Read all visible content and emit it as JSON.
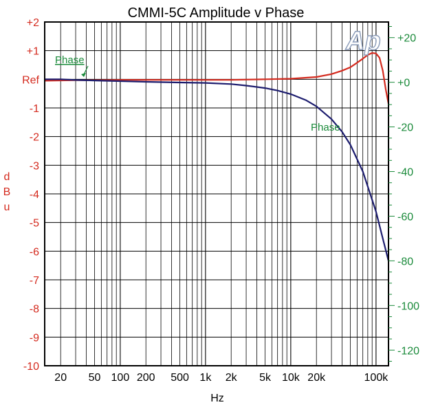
{
  "chart_data": {
    "type": "line",
    "title": "CMMI-5C  Amplitude v Phase",
    "xlabel": "Hz",
    "ylabel_left": "dBu",
    "x_scale": "log",
    "xlim": [
      13,
      140000
    ],
    "ylim_left": [
      -10,
      2
    ],
    "ylim_right": [
      -127,
      27
    ],
    "grid": true,
    "x_ticks": [
      {
        "value": 20,
        "label": "20"
      },
      {
        "value": 50,
        "label": "50"
      },
      {
        "value": 100,
        "label": "100"
      },
      {
        "value": 200,
        "label": "200"
      },
      {
        "value": 500,
        "label": "500"
      },
      {
        "value": 1000,
        "label": "1k"
      },
      {
        "value": 2000,
        "label": "2k"
      },
      {
        "value": 5000,
        "label": "5k"
      },
      {
        "value": 10000,
        "label": "10k"
      },
      {
        "value": 20000,
        "label": "20k"
      },
      {
        "value": 100000,
        "label": "100k"
      }
    ],
    "y_left_ticks": [
      {
        "value": 2,
        "label": "+2"
      },
      {
        "value": 1,
        "label": "+1"
      },
      {
        "value": 0,
        "label": "Ref"
      },
      {
        "value": -1,
        "label": "-1"
      },
      {
        "value": -2,
        "label": "-2"
      },
      {
        "value": -3,
        "label": "-3"
      },
      {
        "value": -4,
        "label": "-4"
      },
      {
        "value": -5,
        "label": "-5"
      },
      {
        "value": -6,
        "label": "-6"
      },
      {
        "value": -7,
        "label": "-7"
      },
      {
        "value": -8,
        "label": "-8"
      },
      {
        "value": -9,
        "label": "-9"
      },
      {
        "value": -10,
        "label": "-10"
      }
    ],
    "y_right_ticks": [
      {
        "value": 20,
        "label": "+20"
      },
      {
        "value": 0,
        "label": "+0"
      },
      {
        "value": -20,
        "label": "-20"
      },
      {
        "value": -40,
        "label": "-40"
      },
      {
        "value": -60,
        "label": "-60"
      },
      {
        "value": -80,
        "label": "-80"
      },
      {
        "value": -100,
        "label": "-100"
      },
      {
        "value": -120,
        "label": "-120"
      }
    ],
    "series": [
      {
        "axis": "left",
        "color": "#d42a1e",
        "x": [
          13,
          20,
          30,
          50,
          100,
          200,
          500,
          1000,
          2000,
          5000,
          10000,
          20000,
          30000,
          40000,
          50000,
          60000,
          70000,
          80000,
          90000,
          100000,
          110000,
          120000,
          130000,
          140000
        ],
        "y": [
          -0.05,
          -0.04,
          -0.03,
          -0.03,
          -0.02,
          -0.02,
          -0.02,
          -0.02,
          -0.02,
          0,
          0.02,
          0.08,
          0.18,
          0.3,
          0.42,
          0.58,
          0.72,
          0.85,
          0.92,
          0.9,
          0.75,
          0.3,
          -0.35,
          -0.85
        ]
      },
      {
        "axis": "right",
        "color": "#1c1c6e",
        "x": [
          13,
          20,
          30,
          50,
          100,
          200,
          500,
          1000,
          2000,
          3000,
          5000,
          7000,
          10000,
          15000,
          20000,
          30000,
          40000,
          50000,
          70000,
          100000,
          120000,
          140000
        ],
        "y": [
          1.3,
          1.3,
          1,
          0.8,
          0.5,
          0.2,
          -0.1,
          -0.3,
          -0.8,
          -1.5,
          -2.6,
          -3.7,
          -5.3,
          -8,
          -10.8,
          -16.5,
          -22.2,
          -28,
          -40,
          -58,
          -70,
          -80
        ]
      }
    ],
    "annotations": [
      {
        "text": "Phase"
      },
      {
        "text": "Phase"
      }
    ]
  }
}
